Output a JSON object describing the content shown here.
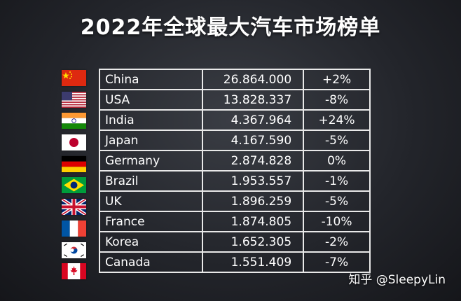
{
  "title": "2022年全球最大汽车市场榜单",
  "rows": [
    {
      "country": "China",
      "sales": "26.864.000",
      "change": "+2%",
      "flag": "china-flag-icon"
    },
    {
      "country": "USA",
      "sales": "13.828.337",
      "change": "-8%",
      "flag": "usa-flag-icon"
    },
    {
      "country": "India",
      "sales": "4.367.964",
      "change": "+24%",
      "flag": "india-flag-icon"
    },
    {
      "country": "Japan",
      "sales": "4.167.590",
      "change": "-5%",
      "flag": "japan-flag-icon"
    },
    {
      "country": "Germany",
      "sales": "2.874.828",
      "change": "0%",
      "flag": "germany-flag-icon"
    },
    {
      "country": "Brazil",
      "sales": "1.953.557",
      "change": "-1%",
      "flag": "brazil-flag-icon"
    },
    {
      "country": "UK",
      "sales": "1.896.259",
      "change": "-5%",
      "flag": "uk-flag-icon"
    },
    {
      "country": "France",
      "sales": "1.874.805",
      "change": "-10%",
      "flag": "france-flag-icon"
    },
    {
      "country": "Korea",
      "sales": "1.652.305",
      "change": "-2%",
      "flag": "korea-flag-icon"
    },
    {
      "country": "Canada",
      "sales": "1.551.409",
      "change": "-7%",
      "flag": "canada-flag-icon"
    }
  ],
  "watermark": "知乎 @SleepyLin"
}
